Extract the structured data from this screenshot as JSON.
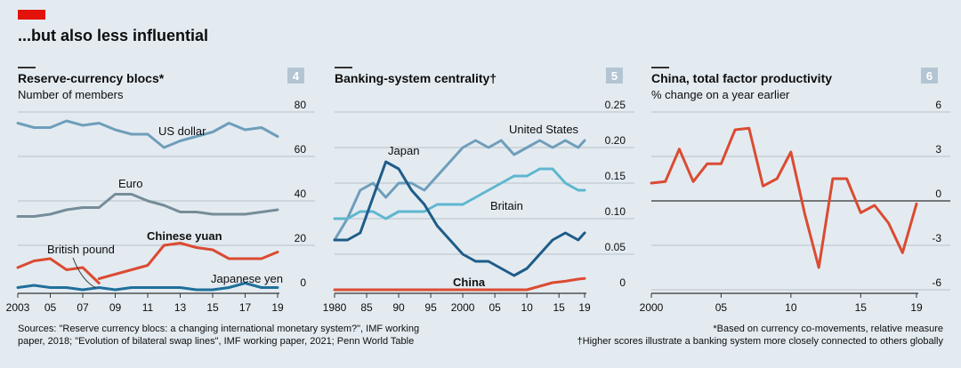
{
  "header": {
    "title": "...but also less influential"
  },
  "colors": {
    "background": "#e3ebf1",
    "accent_red": "#e3120b",
    "grid": "#b9c2c9",
    "text": "#0d0d0d",
    "us_dollar": "#6f9ebb",
    "euro": "#758d99",
    "yuan": "#db4b32",
    "pound": "#db4b32",
    "yen": "#1f6f9a",
    "japan": "#1f5c88",
    "united_states": "#6f9ebb",
    "britain": "#5fb6cf",
    "china": "#db4b32",
    "tfp": "#db4b32"
  },
  "footer": {
    "sources_line1": "Sources: \"Reserve currency blocs: a changing international monetary system?\", IMF working",
    "sources_line2": "paper, 2018; \"Evolution of bilateral swap lines\", IMF working paper, 2021; Penn World Table",
    "note1": "*Based on currency co-movements, relative measure",
    "note2": "†Higher scores illustrate a banking system more closely connected to others globally"
  },
  "chart_data": [
    {
      "type": "line",
      "number": "4",
      "title": "Reserve-currency blocs*",
      "subtitle": "Number of members",
      "xlim": [
        2003,
        2019
      ],
      "ylim": [
        0,
        80
      ],
      "yticks": [
        0,
        20,
        40,
        60,
        80
      ],
      "ytick_labels": [
        "0",
        "20",
        "40",
        "60",
        "80"
      ],
      "xticks": [
        2003,
        2005,
        2007,
        2009,
        2011,
        2013,
        2015,
        2017,
        2019
      ],
      "xtick_labels": [
        "2003",
        "05",
        "07",
        "09",
        "11",
        "13",
        "15",
        "17",
        "19"
      ],
      "series": [
        {
          "name": "US dollar",
          "color_key": "us_dollar",
          "x": [
            2003,
            2004,
            2005,
            2006,
            2007,
            2008,
            2009,
            2010,
            2011,
            2012,
            2013,
            2014,
            2015,
            2016,
            2017,
            2018,
            2019
          ],
          "values": [
            75,
            73,
            73,
            76,
            74,
            75,
            72,
            70,
            70,
            64,
            67,
            69,
            71,
            75,
            72,
            73,
            69
          ]
        },
        {
          "name": "Euro",
          "color_key": "euro",
          "x": [
            2003,
            2004,
            2005,
            2006,
            2007,
            2008,
            2009,
            2010,
            2011,
            2012,
            2013,
            2014,
            2015,
            2016,
            2017,
            2018,
            2019
          ],
          "values": [
            33,
            33,
            34,
            36,
            37,
            37,
            43,
            43,
            40,
            38,
            35,
            35,
            34,
            34,
            34,
            35,
            36
          ]
        },
        {
          "name": "Chinese yuan",
          "color_key": "yuan",
          "x": [
            2008,
            2009,
            2010,
            2011,
            2012,
            2013,
            2014,
            2015,
            2016,
            2017,
            2018,
            2019
          ],
          "values": [
            5,
            7,
            9,
            11,
            20,
            21,
            19,
            18,
            14,
            14,
            14,
            17
          ]
        },
        {
          "name": "British pound",
          "color_key": "pound",
          "x": [
            2003,
            2004,
            2005,
            2006,
            2007,
            2008
          ],
          "values": [
            10,
            13,
            14,
            9,
            10,
            3
          ]
        },
        {
          "name": "Japanese yen",
          "color_key": "yen",
          "x": [
            2003,
            2004,
            2005,
            2006,
            2007,
            2008,
            2009,
            2010,
            2011,
            2012,
            2013,
            2014,
            2015,
            2016,
            2017,
            2018,
            2019
          ],
          "values": [
            1,
            2,
            1,
            1,
            0,
            1,
            0,
            1,
            1,
            1,
            1,
            0,
            0,
            1,
            3,
            1,
            1
          ]
        }
      ]
    },
    {
      "type": "line",
      "number": "5",
      "title": "Banking-system centrality†",
      "subtitle": "",
      "xlim": [
        1980,
        2019
      ],
      "ylim": [
        0,
        0.25
      ],
      "yticks": [
        0,
        0.05,
        0.1,
        0.15,
        0.2,
        0.25
      ],
      "ytick_labels": [
        "0",
        "0.05",
        "0.10",
        "0.15",
        "0.20",
        "0.25"
      ],
      "xticks": [
        1980,
        1985,
        1990,
        1995,
        2000,
        2005,
        2010,
        2015,
        2019
      ],
      "xtick_labels": [
        "1980",
        "85",
        "90",
        "95",
        "2000",
        "05",
        "10",
        "15",
        "19"
      ],
      "series": [
        {
          "name": "United States",
          "color_key": "united_states",
          "x": [
            1980,
            1982,
            1984,
            1986,
            1988,
            1990,
            1992,
            1994,
            1996,
            1998,
            2000,
            2002,
            2004,
            2006,
            2008,
            2010,
            2012,
            2014,
            2016,
            2018,
            2019
          ],
          "values": [
            0.07,
            0.1,
            0.14,
            0.15,
            0.13,
            0.15,
            0.15,
            0.14,
            0.16,
            0.18,
            0.2,
            0.21,
            0.2,
            0.21,
            0.19,
            0.2,
            0.21,
            0.2,
            0.21,
            0.2,
            0.21
          ]
        },
        {
          "name": "Britain",
          "color_key": "britain",
          "x": [
            1980,
            1982,
            1984,
            1986,
            1988,
            1990,
            1992,
            1994,
            1996,
            1998,
            2000,
            2002,
            2004,
            2006,
            2008,
            2010,
            2012,
            2014,
            2016,
            2018,
            2019
          ],
          "values": [
            0.1,
            0.1,
            0.11,
            0.11,
            0.1,
            0.11,
            0.11,
            0.11,
            0.12,
            0.12,
            0.12,
            0.13,
            0.14,
            0.15,
            0.16,
            0.16,
            0.17,
            0.17,
            0.15,
            0.14,
            0.14
          ]
        },
        {
          "name": "Japan",
          "color_key": "japan",
          "x": [
            1980,
            1982,
            1984,
            1986,
            1988,
            1990,
            1992,
            1994,
            1996,
            1998,
            2000,
            2002,
            2004,
            2006,
            2008,
            2010,
            2012,
            2014,
            2016,
            2018,
            2019
          ],
          "values": [
            0.07,
            0.07,
            0.08,
            0.13,
            0.18,
            0.17,
            0.14,
            0.12,
            0.09,
            0.07,
            0.05,
            0.04,
            0.04,
            0.03,
            0.02,
            0.03,
            0.05,
            0.07,
            0.08,
            0.07,
            0.08
          ]
        },
        {
          "name": "China",
          "color_key": "china",
          "x": [
            1980,
            1985,
            1990,
            1995,
            2000,
            2005,
            2010,
            2012,
            2014,
            2016,
            2018,
            2019
          ],
          "values": [
            0.0,
            0.0,
            0.0,
            0.0,
            0.0,
            0.0,
            0.0,
            0.005,
            0.01,
            0.012,
            0.015,
            0.016
          ]
        }
      ]
    },
    {
      "type": "line",
      "number": "6",
      "title": "China, total factor productivity",
      "subtitle": "% change on a year earlier",
      "xlim": [
        2000,
        2019
      ],
      "ylim": [
        -6,
        6
      ],
      "yticks": [
        -6,
        -3,
        0,
        3,
        6
      ],
      "ytick_labels": [
        "-6",
        "-3",
        "0",
        "3",
        "6"
      ],
      "xticks": [
        2000,
        2005,
        2010,
        2015,
        2019
      ],
      "xtick_labels": [
        "2000",
        "05",
        "10",
        "15",
        "19"
      ],
      "series": [
        {
          "name": "",
          "color_key": "tfp",
          "x": [
            2000,
            2001,
            2002,
            2003,
            2004,
            2005,
            2006,
            2007,
            2008,
            2009,
            2010,
            2011,
            2012,
            2013,
            2014,
            2015,
            2016,
            2017,
            2018,
            2019
          ],
          "values": [
            1.2,
            1.3,
            3.5,
            1.3,
            2.5,
            2.5,
            4.8,
            4.9,
            1.0,
            1.5,
            3.3,
            -0.9,
            -4.5,
            1.5,
            1.5,
            -0.8,
            -0.3,
            -1.5,
            -3.5,
            -0.2
          ]
        }
      ]
    }
  ]
}
